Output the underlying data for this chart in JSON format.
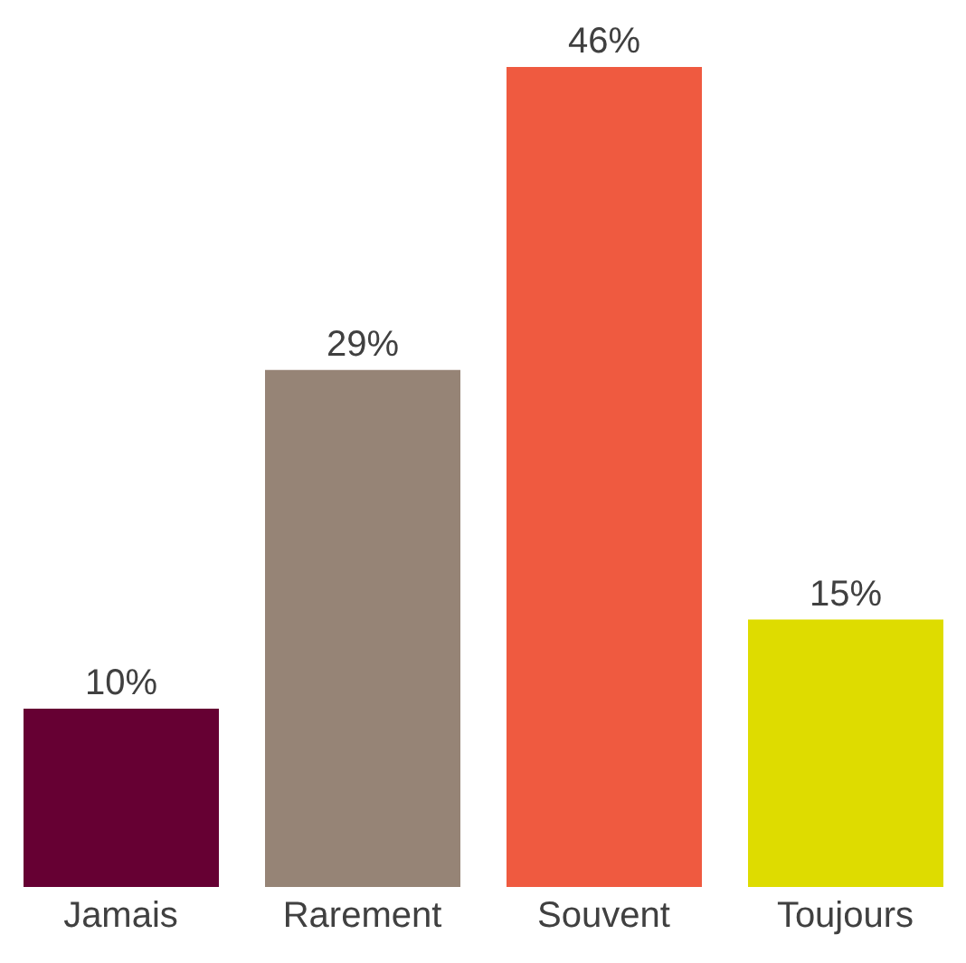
{
  "chart_data": {
    "type": "bar",
    "categories": [
      "Jamais",
      "Rarement",
      "Souvent",
      "Toujours"
    ],
    "values": [
      10,
      29,
      46,
      15
    ],
    "colors": [
      "#660033",
      "#968476",
      "#ef5a40",
      "#dedc00"
    ],
    "value_labels": [
      "10%",
      "29%",
      "46%",
      "15%"
    ],
    "grid": false,
    "legend": false
  }
}
